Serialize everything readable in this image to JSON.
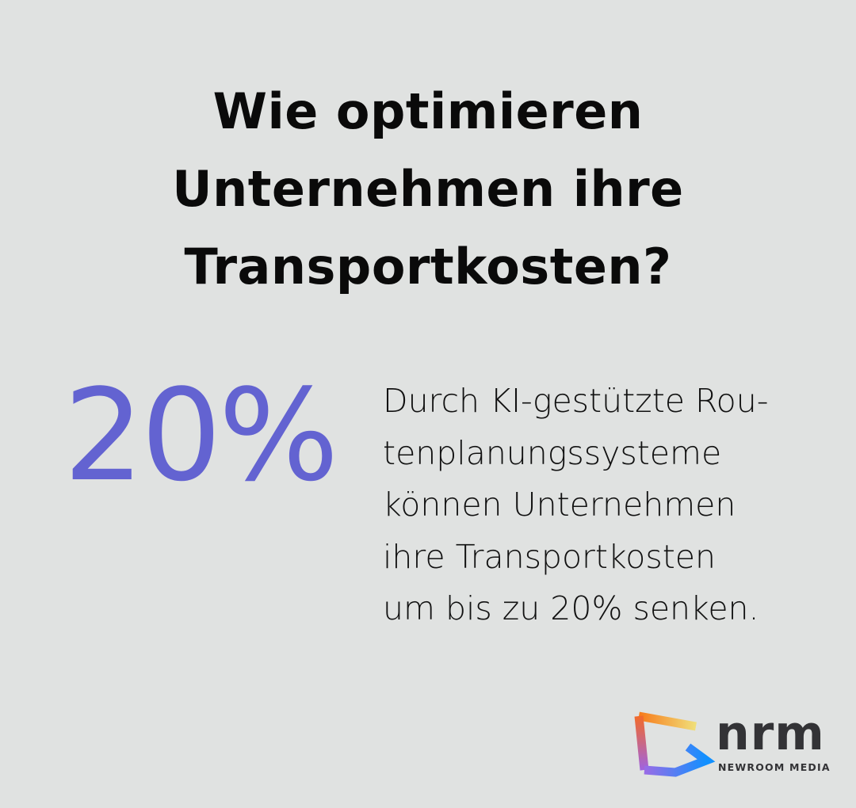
{
  "title": {
    "lines": [
      "Wie optimieren",
      "Unternehmen ihre",
      "Transportkosten?"
    ]
  },
  "stat": {
    "value": "20%",
    "color": "#6363d1"
  },
  "description": {
    "lines": [
      "Durch KI-gestützte Rou-",
      "tenplanungssysteme",
      "können Unternehmen",
      "ihre Transportkosten",
      "um bis zu 20% senken."
    ]
  },
  "logo": {
    "wordmark": "nrm",
    "tagline": "NEWROOM MEDIA"
  },
  "colors": {
    "background": "#e0e2e1",
    "accent": "#6363d1",
    "logo_text": "#333336"
  }
}
